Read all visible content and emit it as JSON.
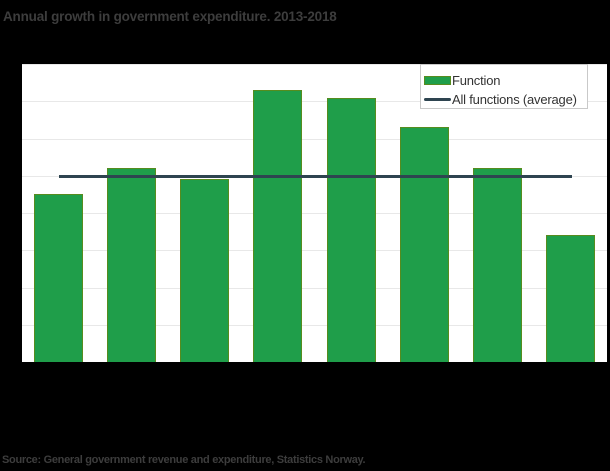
{
  "title": "Annual growth in government expenditure. 2013-2018",
  "source": "Source: General government revenue and expenditure, Statistics Norway.",
  "legend": {
    "position": "top-right",
    "items": [
      {
        "label": "Function",
        "swatch": "bar-swatch"
      },
      {
        "label": "All functions (average)",
        "swatch": "line-swatch"
      }
    ]
  },
  "colors": {
    "background": "#000000",
    "plot_background": "#ffffff",
    "gridline": "#e8e8e8",
    "bar_fill": "#1f9e4a",
    "bar_border": "#568c1e",
    "average_line": "#2e4450",
    "legend_border": "#c9c9c9",
    "muted_text": "#3d3d3d"
  },
  "chart_data": {
    "type": "bar",
    "title": "Annual growth in government expenditure. 2013-2018",
    "x_tick_labels_visible": false,
    "y_tick_labels_visible": false,
    "bar_count": 8,
    "series": [
      {
        "name": "Function",
        "type": "bar",
        "values": [
          4.5,
          5.2,
          4.9,
          7.3,
          7.1,
          6.3,
          5.2,
          3.4
        ]
      },
      {
        "name": "All functions (average)",
        "type": "line",
        "value": 5.0
      }
    ],
    "ylim": [
      0,
      8
    ],
    "gridline_interval": 1,
    "grid": true,
    "legend_position": "top-right"
  }
}
